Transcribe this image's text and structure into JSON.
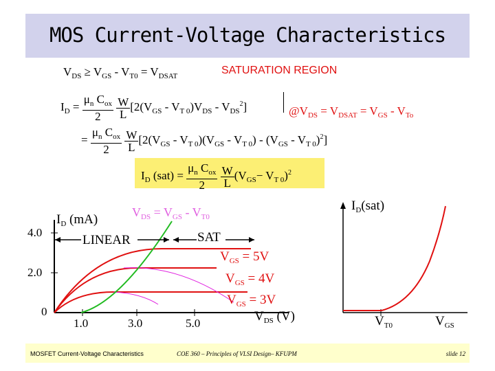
{
  "slide": {
    "title": "MOS Current-Voltage Characteristics"
  },
  "equations": {
    "cond_lhs_a": "V",
    "cond_lhs_a_sub": "DS",
    "cond_mid": " ≥ V",
    "cond_mid_sub": "GS",
    "cond_mid2": " - V",
    "cond_mid2_sub": "T0",
    "cond_end": " = V",
    "cond_end_sub": "DSAT",
    "region": "SATURATION REGION",
    "id_label": "I",
    "id_sub": "D",
    "eq1_rest": "[2(V",
    "eq1_rest2": " - V",
    "eq1_rest3": ")V",
    "eq1_rest4": " - V",
    "eq1_rest5": "]",
    "at_cond": "@V",
    "at_cond2": " = V",
    "at_cond3": " = V",
    "at_cond4": " - V",
    "eq2_rest": "[2(V",
    "eq2_rest2": " - V",
    "eq2_rest3": ")(V",
    "eq2_rest4": " - V",
    "eq2_rest5": ") - (V",
    "eq2_rest6": " - V",
    "eq2_rest7": ")",
    "eq2_end": "]",
    "mu": "μ",
    "mu_sub": "n",
    "cox": "C",
    "cox_sub": "ox",
    "two": "2",
    "w": "W",
    "l": "L",
    "sq": "2",
    "sat_lhs": "I",
    "sat_lhs_sub": "D",
    "sat_lhs_rest": " (sat) = ",
    "sat_rhs": "(V",
    "sat_rhs2": "− V",
    "sat_rhs3": ")",
    "eq_sign": "=",
    "sub_GS": "GS",
    "sub_T0": "T 0",
    "sub_DS": "DS",
    "sub_DSAT": "DSAT",
    "sub_To": "To"
  },
  "left_chart": {
    "y_label": "I",
    "y_label_sub": "D",
    "y_label_unit": " (mA)",
    "curve_label": "V",
    "curve_label_sub1": "DS",
    "curve_label_mid": " = V",
    "curve_label_sub2": "GS",
    "curve_label_end": " - V",
    "curve_label_sub3": "T0",
    "linear": "LINEAR",
    "sat": "SAT",
    "y_ticks": [
      "4.0",
      "2.0",
      "0"
    ],
    "x_ticks": [
      "1.0",
      "3.0",
      "5.0"
    ],
    "x_label": "V",
    "x_label_sub": "DS",
    "x_label_unit": " (V)",
    "vgs5": "V",
    "vgs5_sub": "GS",
    "vgs5_val": " = 5V",
    "vgs4": "V",
    "vgs4_sub": "GS",
    "vgs4_val": " = 4V",
    "vgs3": "V",
    "vgs3_sub": "GS",
    "vgs3_val": " = 3V",
    "colors": {
      "curve": "#e01010",
      "parabola": "#22bb22",
      "pink": "#e020e0",
      "axis": "#000000"
    }
  },
  "right_chart": {
    "y_label": "I",
    "y_label_sub": "D",
    "y_label_rest": "(sat)",
    "x_tick": "V",
    "x_tick_sub": "T0",
    "x_label": "V",
    "x_label_sub": "GS"
  },
  "footer": {
    "left": "MOSFET Current-Voltage Characteristics",
    "center": "COE 360 – Principles of VLSI Design– KFUPM",
    "right": "slide 12"
  }
}
